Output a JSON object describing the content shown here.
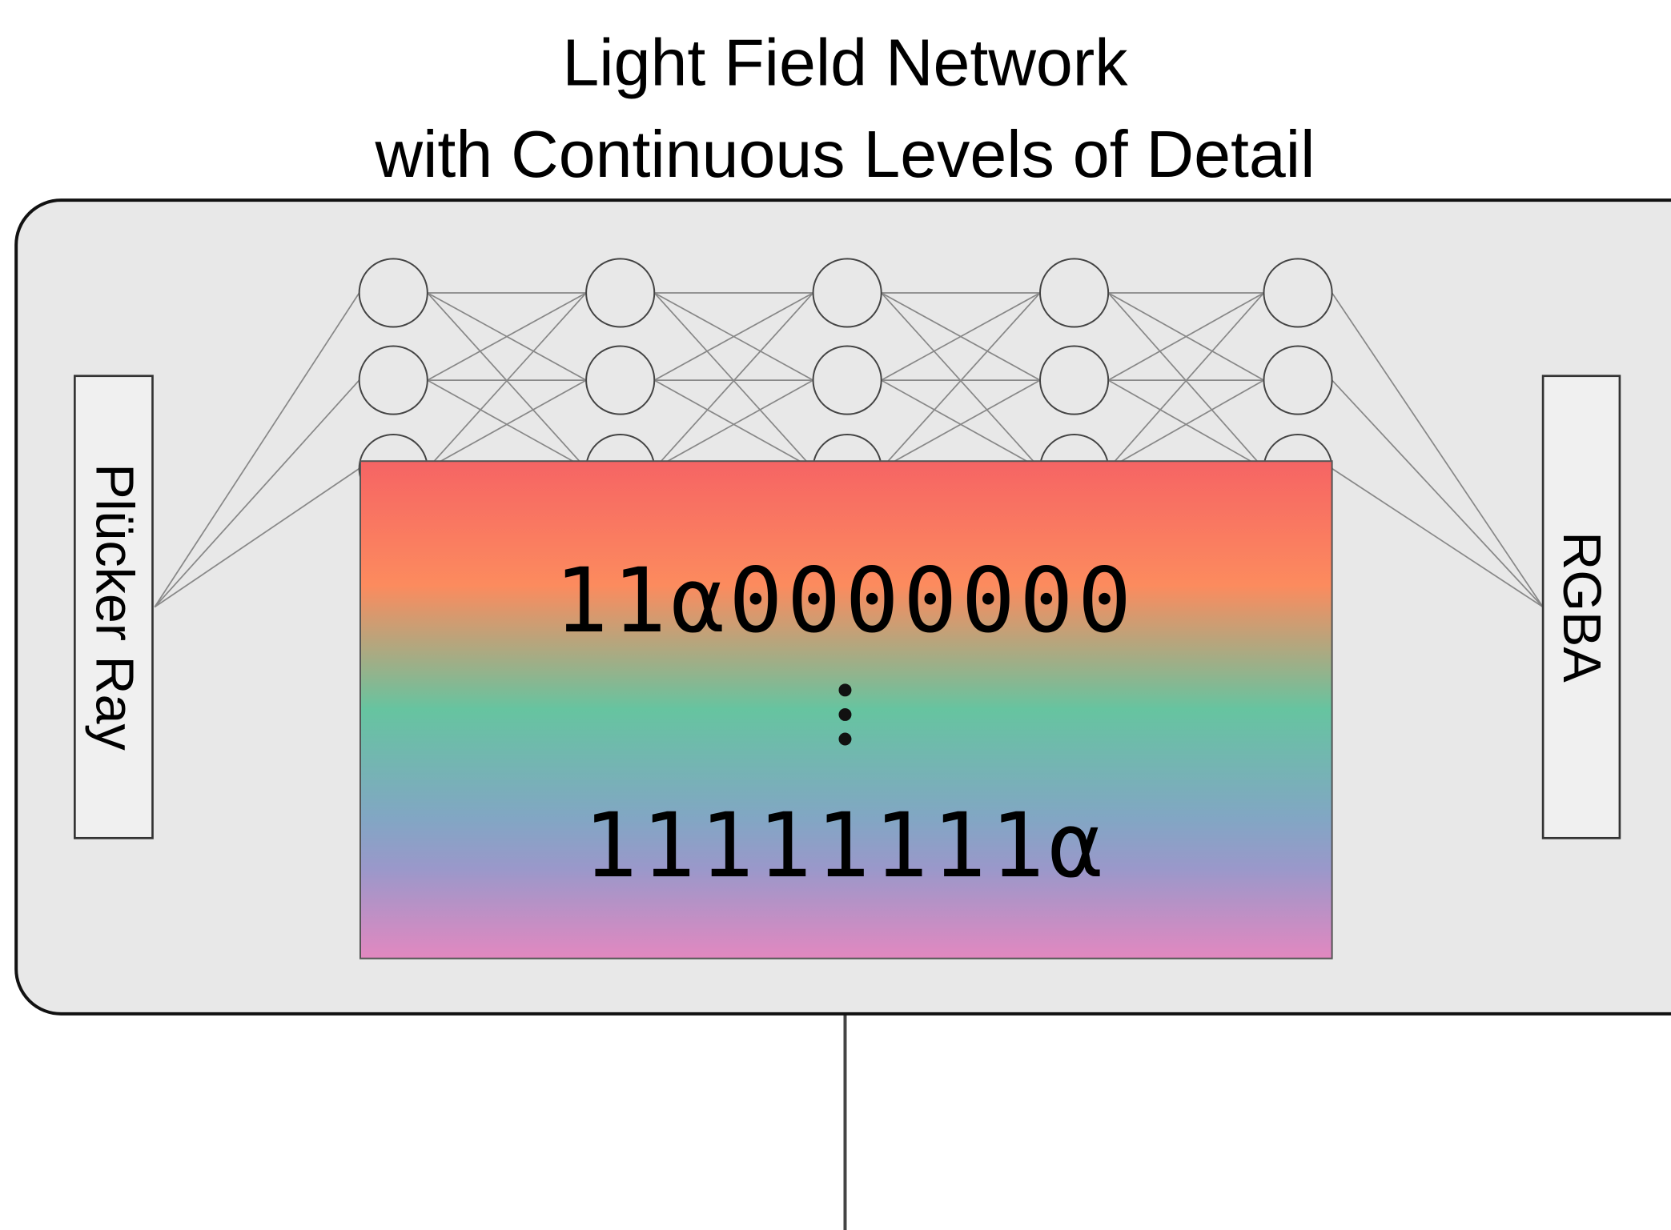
{
  "title": [
    "Light Field Network",
    "with Continuous Levels of Detail"
  ],
  "input": "Plücker Ray",
  "output": "RGBA",
  "masks": [
    "11α0000000",
    "11111111α"
  ]
}
